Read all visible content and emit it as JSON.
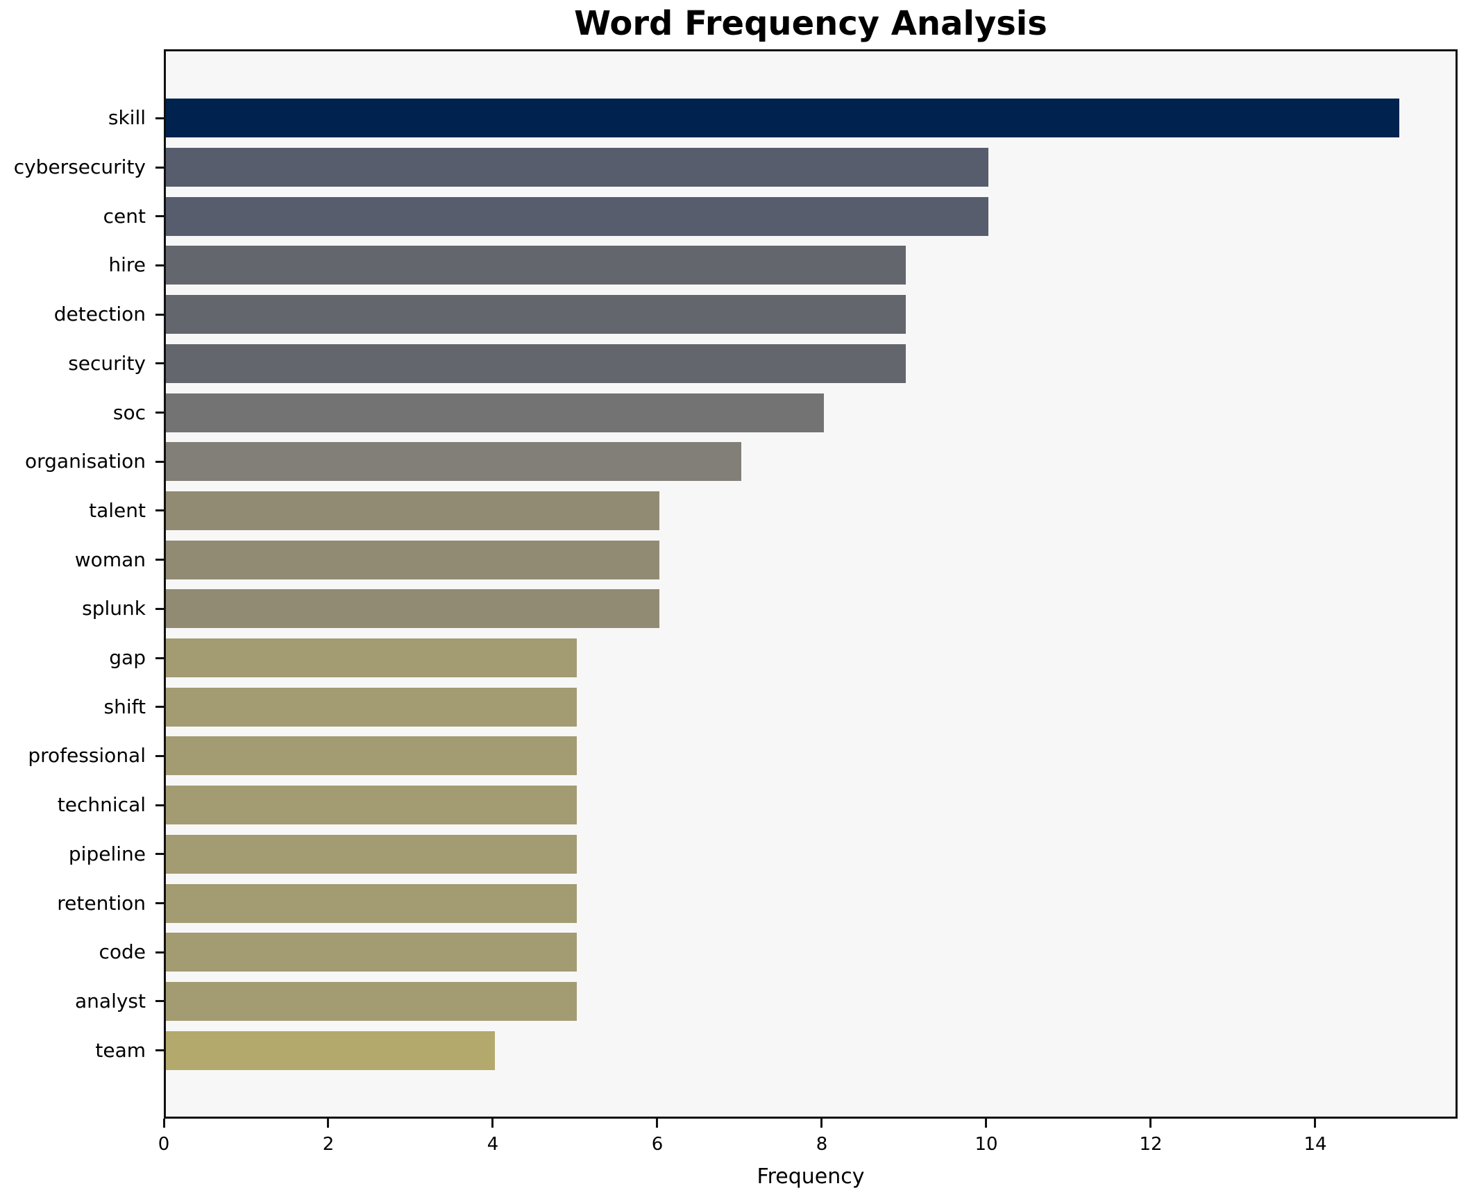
{
  "chart_data": {
    "type": "bar",
    "orientation": "horizontal",
    "title": "Word Frequency Analysis",
    "xlabel": "Frequency",
    "ylabel": "",
    "categories": [
      "skill",
      "cybersecurity",
      "cent",
      "hire",
      "detection",
      "security",
      "soc",
      "organisation",
      "talent",
      "woman",
      "splunk",
      "gap",
      "shift",
      "professional",
      "technical",
      "pipeline",
      "retention",
      "code",
      "analyst",
      "team"
    ],
    "values": [
      15,
      10,
      10,
      9,
      9,
      9,
      8,
      7,
      6,
      6,
      6,
      5,
      5,
      5,
      5,
      5,
      5,
      5,
      5,
      4
    ],
    "bar_colors": [
      "#00224e",
      "#575d6d",
      "#575d6d",
      "#64666d",
      "#64666d",
      "#64666d",
      "#727372",
      "#827f78",
      "#928b74",
      "#928b74",
      "#928b74",
      "#a39b72",
      "#a39b72",
      "#a39b72",
      "#a39b72",
      "#a39b72",
      "#a39b72",
      "#a39b72",
      "#a39b72",
      "#b3a96c"
    ],
    "x_ticks": [
      0,
      2,
      4,
      6,
      8,
      10,
      12,
      14
    ],
    "xlim": [
      0,
      15.73
    ],
    "grid": false,
    "legend_position": "none",
    "plot_background": "#f7f7f7",
    "figure_background": "#ffffff",
    "spine_color": "#111111"
  }
}
